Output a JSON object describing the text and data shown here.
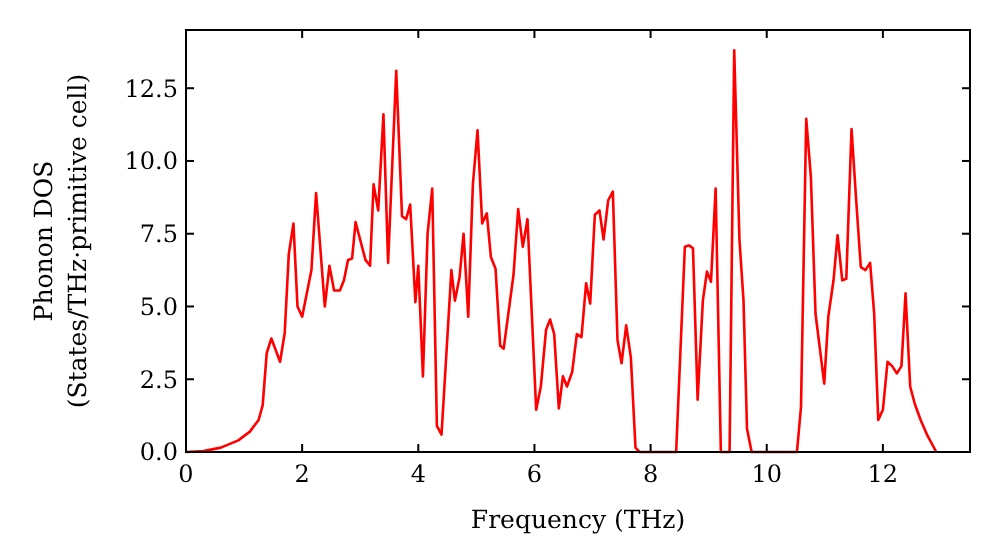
{
  "chart_data": {
    "type": "line",
    "xlabel": "Frequency (THz)",
    "ylabel": "Phonon DOS\n(States/THz·primitive cell)",
    "xlim": [
      0,
      13.5
    ],
    "ylim": [
      0,
      14.5
    ],
    "xticks": [
      0,
      2,
      4,
      6,
      8,
      10,
      12
    ],
    "yticks": [
      {
        "value": 0,
        "label": "0.0"
      },
      {
        "value": 2.5,
        "label": "2.5"
      },
      {
        "value": 5,
        "label": "5.0"
      },
      {
        "value": 7.5,
        "label": "7.5"
      },
      {
        "value": 10,
        "label": "10.0"
      },
      {
        "value": 12.5,
        "label": "12.5"
      }
    ],
    "grid": false,
    "marker": "none",
    "line_style": "solid",
    "series": [
      {
        "color": "#ff0000",
        "x": [
          0,
          0.3,
          0.6,
          0.9,
          1.1,
          1.25,
          1.32,
          1.39,
          1.47,
          1.62,
          1.7,
          1.77,
          1.85,
          1.92,
          2.0,
          2.16,
          2.24,
          2.39,
          2.47,
          2.55,
          2.65,
          2.72,
          2.79,
          2.86,
          2.92,
          3.09,
          3.17,
          3.23,
          3.31,
          3.4,
          3.48,
          3.62,
          3.72,
          3.79,
          3.86,
          3.95,
          4.0,
          4.08,
          4.16,
          4.24,
          4.32,
          4.4,
          4.57,
          4.63,
          4.71,
          4.78,
          4.86,
          4.94,
          5.02,
          5.1,
          5.18,
          5.25,
          5.33,
          5.41,
          5.47,
          5.64,
          5.72,
          5.8,
          5.88,
          6.03,
          6.11,
          6.2,
          6.27,
          6.34,
          6.42,
          6.49,
          6.56,
          6.65,
          6.73,
          6.81,
          6.89,
          6.96,
          7.04,
          7.12,
          7.19,
          7.27,
          7.35,
          7.43,
          7.5,
          7.58,
          7.66,
          7.74,
          7.81,
          8.44,
          8.59,
          8.66,
          8.73,
          8.81,
          8.9,
          8.97,
          9.04,
          9.12,
          9.21,
          9.36,
          9.44,
          9.53,
          9.6,
          9.66,
          9.74,
          10.52,
          10.59,
          10.68,
          10.76,
          10.84,
          10.99,
          11.06,
          11.15,
          11.22,
          11.3,
          11.37,
          11.46,
          11.54,
          11.62,
          11.7,
          11.78,
          11.85,
          11.92,
          12.0,
          12.08,
          12.16,
          12.24,
          12.32,
          12.39,
          12.47,
          12.55,
          12.65,
          12.77,
          12.92
        ],
        "values": [
          0,
          0.03,
          0.15,
          0.4,
          0.7,
          1.1,
          1.6,
          3.4,
          3.9,
          3.1,
          4.1,
          6.8,
          7.85,
          5.0,
          4.65,
          6.25,
          8.9,
          5.0,
          6.4,
          5.55,
          5.55,
          5.9,
          6.6,
          6.65,
          7.9,
          6.6,
          6.4,
          9.2,
          8.3,
          11.6,
          6.5,
          13.1,
          8.1,
          8.0,
          8.5,
          5.15,
          6.4,
          2.6,
          7.5,
          9.05,
          0.9,
          0.6,
          6.25,
          5.2,
          6.0,
          7.5,
          4.65,
          9.2,
          11.05,
          7.85,
          8.2,
          6.7,
          6.3,
          3.65,
          3.55,
          6.1,
          8.35,
          7.05,
          8.0,
          1.45,
          2.25,
          4.2,
          4.55,
          4.05,
          1.5,
          2.6,
          2.25,
          2.75,
          4.05,
          3.95,
          5.8,
          5.1,
          8.15,
          8.3,
          7.3,
          8.65,
          8.95,
          3.85,
          3.05,
          4.35,
          3.25,
          0.15,
          0,
          0,
          7.05,
          7.1,
          7.0,
          1.8,
          5.2,
          6.2,
          5.85,
          9.05,
          0,
          0,
          13.8,
          7.3,
          5.2,
          0.8,
          0,
          0,
          1.55,
          11.45,
          9.45,
          4.75,
          2.35,
          4.65,
          5.9,
          7.45,
          5.9,
          5.95,
          11.1,
          8.65,
          6.35,
          6.25,
          6.5,
          4.75,
          1.1,
          1.45,
          3.1,
          2.95,
          2.7,
          2.95,
          5.45,
          2.25,
          1.65,
          1.1,
          0.55,
          0
        ]
      }
    ]
  }
}
